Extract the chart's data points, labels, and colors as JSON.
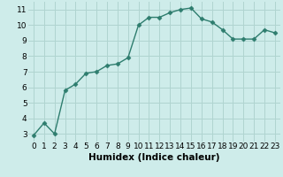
{
  "x": [
    0,
    1,
    2,
    3,
    4,
    5,
    6,
    7,
    8,
    9,
    10,
    11,
    12,
    13,
    14,
    15,
    16,
    17,
    18,
    19,
    20,
    21,
    22,
    23
  ],
  "y": [
    2.9,
    3.7,
    3.0,
    5.8,
    6.2,
    6.9,
    7.0,
    7.4,
    7.5,
    7.9,
    10.0,
    10.5,
    10.5,
    10.8,
    11.0,
    11.1,
    10.4,
    10.2,
    9.7,
    9.1,
    9.1,
    9.1,
    9.7,
    9.5
  ],
  "line_color": "#2e7d6e",
  "marker": "D",
  "markersize": 2.5,
  "linewidth": 1.0,
  "bg_color": "#ceecea",
  "grid_color": "#b0d4d0",
  "xlabel": "Humidex (Indice chaleur)",
  "xlim": [
    -0.5,
    23.5
  ],
  "ylim": [
    2.5,
    11.5
  ],
  "yticks": [
    3,
    4,
    5,
    6,
    7,
    8,
    9,
    10,
    11
  ],
  "xticks": [
    0,
    1,
    2,
    3,
    4,
    5,
    6,
    7,
    8,
    9,
    10,
    11,
    12,
    13,
    14,
    15,
    16,
    17,
    18,
    19,
    20,
    21,
    22,
    23
  ],
  "xlabel_fontsize": 7.5,
  "tick_fontsize": 6.5
}
